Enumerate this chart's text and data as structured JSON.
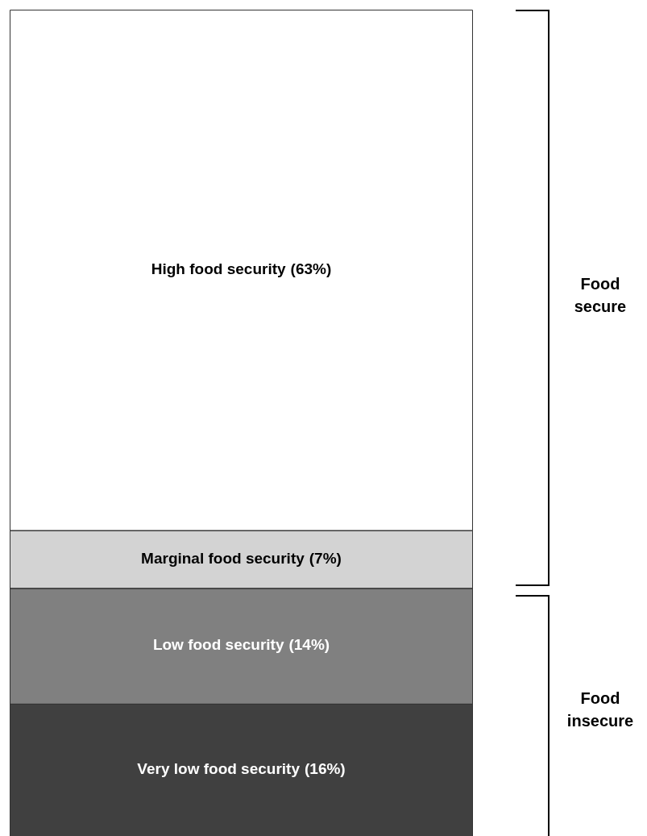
{
  "chart_data": {
    "type": "bar",
    "stacked": true,
    "categories": [
      null
    ],
    "legend": false,
    "series": [
      {
        "name": "Very low food security",
        "color": "#404040",
        "values": [
          16
        ],
        "value_labels": [
          "(16%)"
        ]
      },
      {
        "name": "Low food security",
        "color": "#808080",
        "values": [
          14
        ],
        "value_labels": [
          "(14%)"
        ]
      },
      {
        "name": "Marginal food security",
        "color": "#d3d3d3",
        "values": [
          7
        ],
        "value_labels": [
          "(7%)"
        ]
      },
      {
        "name": "High food security",
        "color": "#ffffff",
        "values": [
          63
        ],
        "value_labels": [
          "(63%)"
        ]
      }
    ],
    "annotations": [
      "Food secure",
      "Food insecure"
    ]
  }
}
